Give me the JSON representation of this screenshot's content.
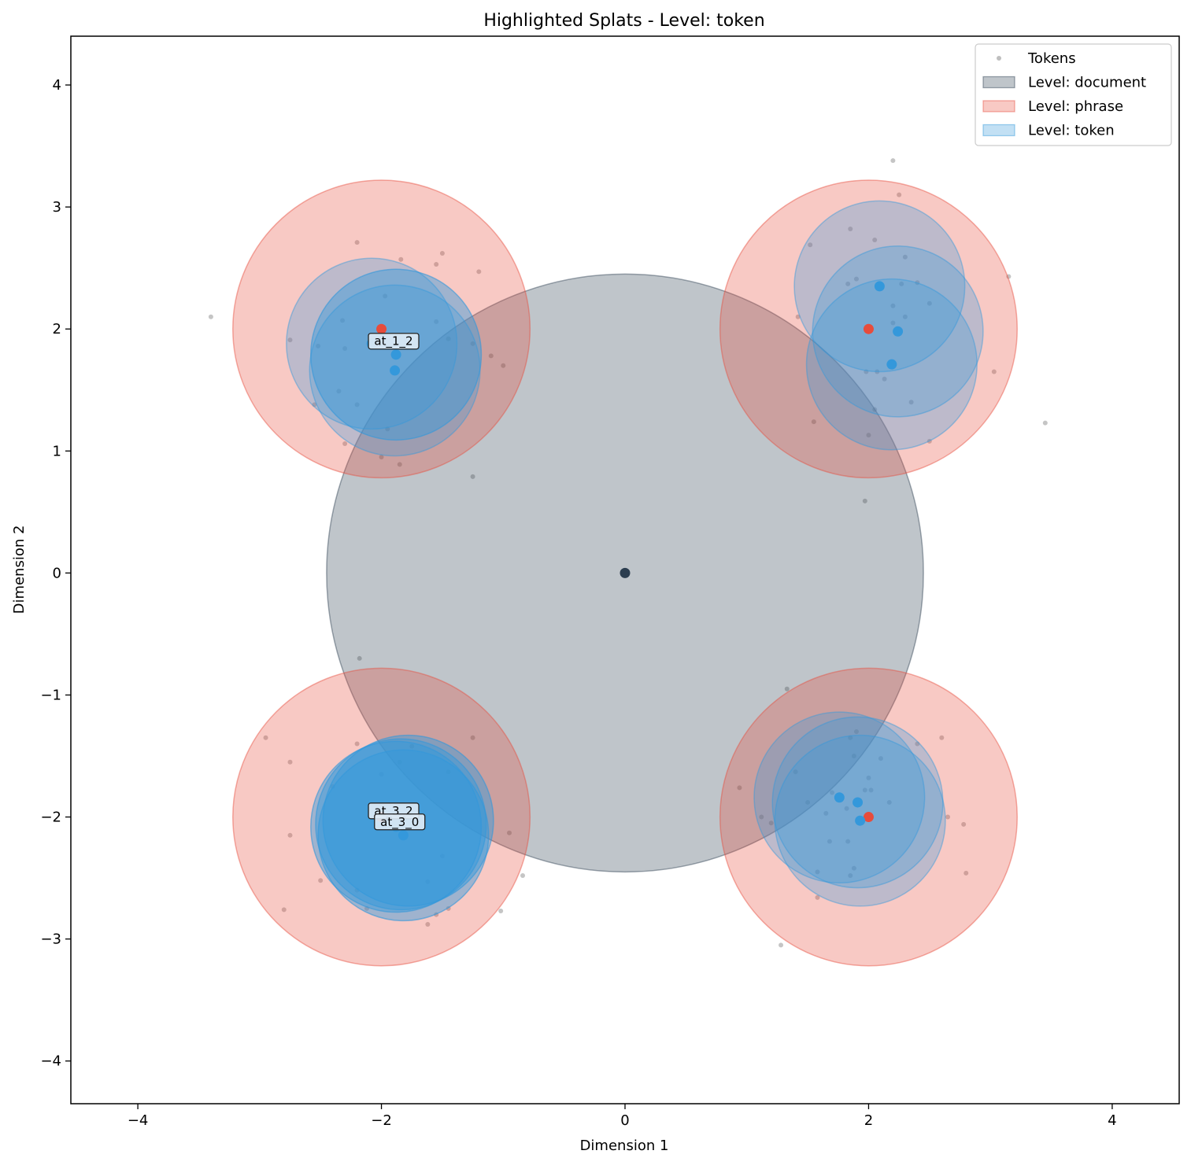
{
  "chart_data": {
    "type": "scatter",
    "title": "Highlighted Splats - Level: token",
    "xlabel": "Dimension 1",
    "ylabel": "Dimension 2",
    "xlim": [
      -4.55,
      4.55
    ],
    "ylim": [
      -4.35,
      4.4
    ],
    "xticks": [
      -4,
      -2,
      0,
      2,
      4
    ],
    "yticks": [
      -4,
      -3,
      -2,
      -1,
      0,
      1,
      2,
      3,
      4
    ],
    "xtick_labels": [
      "−4",
      "−2",
      "0",
      "2",
      "4"
    ],
    "ytick_labels": [
      "−4",
      "−3",
      "−2",
      "−1",
      "0",
      "1",
      "2",
      "3",
      "4"
    ],
    "grid": false,
    "legend_position": "top-right",
    "legend": [
      {
        "label": "Tokens",
        "kind": "point",
        "color": "#bfbfbf"
      },
      {
        "label": "Level: document",
        "kind": "patch",
        "color": "#2c3e50"
      },
      {
        "label": "Level: phrase",
        "kind": "patch",
        "color": "#e74c3c"
      },
      {
        "label": "Level: token",
        "kind": "patch",
        "color": "#3498db"
      }
    ],
    "colors": {
      "document": "#2c3e50",
      "phrase": "#e74c3c",
      "token": "#3498db",
      "tokens": "#bfbfbf"
    },
    "splats": [
      {
        "level": "document",
        "x": 0,
        "y": 0,
        "r": 2.45
      },
      {
        "level": "phrase",
        "x": -2,
        "y": 2,
        "r": 1.22
      },
      {
        "level": "phrase",
        "x": 2,
        "y": 2,
        "r": 1.22
      },
      {
        "level": "phrase",
        "x": -2,
        "y": -2,
        "r": 1.22
      },
      {
        "level": "phrase",
        "x": 2,
        "y": -2,
        "r": 1.22
      },
      {
        "level": "token",
        "x": -2.08,
        "y": 1.88,
        "r": 0.7,
        "highlight": false
      },
      {
        "level": "token",
        "x": -1.88,
        "y": 1.79,
        "r": 0.7,
        "highlight": true
      },
      {
        "level": "token",
        "x": -1.89,
        "y": 1.66,
        "r": 0.7,
        "highlight": false
      },
      {
        "level": "token",
        "x": 2.09,
        "y": 2.35,
        "r": 0.7,
        "highlight": false
      },
      {
        "level": "token",
        "x": 2.24,
        "y": 1.98,
        "r": 0.7,
        "highlight": false
      },
      {
        "level": "token",
        "x": 2.19,
        "y": 1.71,
        "r": 0.7,
        "highlight": false
      },
      {
        "level": "token",
        "x": -1.84,
        "y": -2.06,
        "r": 0.7,
        "highlight": true
      },
      {
        "level": "token",
        "x": -1.78,
        "y": -2.03,
        "r": 0.7,
        "highlight": true
      },
      {
        "level": "token",
        "x": -1.82,
        "y": -2.15,
        "r": 0.7,
        "highlight": true
      },
      {
        "level": "token",
        "x": -1.88,
        "y": -2.08,
        "r": 0.7,
        "highlight": true
      },
      {
        "level": "token",
        "x": 1.76,
        "y": -1.84,
        "r": 0.7,
        "highlight": false
      },
      {
        "level": "token",
        "x": 1.91,
        "y": -1.88,
        "r": 0.7,
        "highlight": false
      },
      {
        "level": "token",
        "x": 1.93,
        "y": -2.03,
        "r": 0.7,
        "highlight": false
      }
    ],
    "annotations": [
      {
        "text": "at_1_2",
        "x": -1.9,
        "y": 1.9
      },
      {
        "text": "at_3_2",
        "x": -1.9,
        "y": -1.95
      },
      {
        "text": "at_3_0",
        "x": -1.85,
        "y": -2.04
      }
    ],
    "tokens": [
      [
        -3.4,
        2.1
      ],
      [
        -2.2,
        2.71
      ],
      [
        -1.97,
        2.27
      ],
      [
        -1.84,
        2.57
      ],
      [
        -1.55,
        2.53
      ],
      [
        -1.5,
        2.62
      ],
      [
        -1.2,
        2.47
      ],
      [
        -2.75,
        1.91
      ],
      [
        -2.35,
        1.49
      ],
      [
        -2.55,
        1.38
      ],
      [
        -2.3,
        1.84
      ],
      [
        -2.32,
        2.07
      ],
      [
        -2.0,
        0.95
      ],
      [
        -1.85,
        0.89
      ],
      [
        -1.25,
        0.79
      ],
      [
        -2.3,
        1.06
      ],
      [
        -1.1,
        1.78
      ],
      [
        -1.0,
        1.7
      ],
      [
        -1.45,
        1.92
      ],
      [
        -1.25,
        1.88
      ],
      [
        -1.55,
        2.06
      ],
      [
        -2.52,
        1.86
      ],
      [
        -2.2,
        1.38
      ],
      [
        -1.95,
        1.18
      ],
      [
        -2.18,
        -0.7
      ],
      [
        -2.2,
        -1.4
      ],
      [
        -2.95,
        -1.35
      ],
      [
        -2.75,
        -1.55
      ],
      [
        -2.75,
        -2.15
      ],
      [
        -2.5,
        -2.52
      ],
      [
        -2.8,
        -2.76
      ],
      [
        -1.85,
        -1.55
      ],
      [
        -1.25,
        -1.35
      ],
      [
        -1.45,
        -1.63
      ],
      [
        -1.5,
        -2.32
      ],
      [
        -1.62,
        -2.53
      ],
      [
        -1.45,
        -2.75
      ],
      [
        -1.55,
        -2.8
      ],
      [
        -1.62,
        -2.88
      ],
      [
        -1.02,
        -2.77
      ],
      [
        -0.84,
        -2.48
      ],
      [
        -0.95,
        -2.13
      ],
      [
        -2.2,
        -2.6
      ],
      [
        -2.12,
        -2.75
      ],
      [
        -2.4,
        -1.75
      ],
      [
        -2.0,
        -1.65
      ],
      [
        -1.75,
        -1.42
      ],
      [
        2.2,
        3.38
      ],
      [
        2.25,
        3.1
      ],
      [
        1.85,
        2.82
      ],
      [
        2.05,
        2.73
      ],
      [
        2.3,
        2.59
      ],
      [
        3.15,
        2.43
      ],
      [
        1.9,
        2.41
      ],
      [
        2.4,
        2.38
      ],
      [
        2.3,
        2.1
      ],
      [
        2.5,
        2.21
      ],
      [
        2.2,
        2.19
      ],
      [
        2.27,
        2.37
      ],
      [
        1.42,
        2.1
      ],
      [
        1.52,
        2.69
      ],
      [
        2.35,
        1.4
      ],
      [
        2.05,
        1.34
      ],
      [
        3.03,
        1.65
      ],
      [
        2.5,
        1.08
      ],
      [
        2.0,
        1.13
      ],
      [
        1.55,
        1.24
      ],
      [
        3.45,
        1.23
      ],
      [
        1.97,
        0.59
      ],
      [
        2.13,
        1.59
      ],
      [
        2.07,
        1.65
      ],
      [
        1.98,
        1.65
      ],
      [
        2.2,
        2.05
      ],
      [
        1.83,
        2.37
      ],
      [
        1.33,
        -0.95
      ],
      [
        0.94,
        -1.76
      ],
      [
        1.12,
        -2.0
      ],
      [
        1.4,
        -1.63
      ],
      [
        1.58,
        -2.66
      ],
      [
        1.58,
        -2.45
      ],
      [
        1.83,
        -2.2
      ],
      [
        1.88,
        -2.42
      ],
      [
        1.85,
        -2.48
      ],
      [
        1.28,
        -3.05
      ],
      [
        2.6,
        -1.35
      ],
      [
        2.65,
        -2.0
      ],
      [
        2.78,
        -2.06
      ],
      [
        2.8,
        -2.46
      ],
      [
        2.4,
        -1.4
      ],
      [
        2.17,
        -1.88
      ],
      [
        2.0,
        -1.68
      ],
      [
        1.97,
        -1.78
      ],
      [
        2.02,
        -1.78
      ],
      [
        1.85,
        -1.35
      ],
      [
        1.9,
        -1.3
      ],
      [
        1.68,
        -2.2
      ],
      [
        1.82,
        -1.93
      ],
      [
        1.65,
        -1.97
      ],
      [
        1.7,
        -1.8
      ],
      [
        1.88,
        -1.5
      ],
      [
        2.1,
        -1.52
      ],
      [
        1.2,
        -2.05
      ],
      [
        1.5,
        -1.88
      ]
    ]
  }
}
